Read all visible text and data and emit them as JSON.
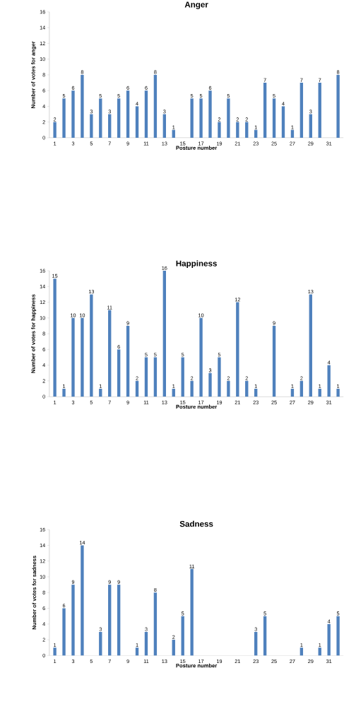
{
  "chart_data": [
    {
      "type": "bar",
      "title": "Anger",
      "xlabel": "Posture number",
      "ylabel": "Number of votes for anger",
      "color": "#4f81bd",
      "data_labels": true,
      "categories": [
        "1",
        null,
        "3",
        null,
        "5",
        null,
        "7",
        null,
        "9",
        null,
        "11",
        null,
        "13",
        null,
        "15",
        null,
        "17",
        null,
        "19",
        null,
        "21",
        null,
        "23",
        null,
        "25",
        null,
        "27",
        null,
        "29",
        null,
        "31",
        null
      ],
      "values": [
        2,
        5,
        6,
        8,
        3,
        5,
        3,
        5,
        6,
        4,
        6,
        8,
        3,
        1,
        null,
        5,
        5,
        6,
        2,
        5,
        2,
        2,
        1,
        7,
        5,
        4,
        1,
        7,
        3,
        7,
        null,
        8
      ],
      "ylim": [
        0,
        16
      ],
      "yticks": [
        0,
        2,
        4,
        6,
        8,
        10,
        12,
        14,
        16
      ]
    },
    {
      "type": "bar",
      "title": "Happiness",
      "xlabel": "Posture number",
      "ylabel": "Number of votes for happiness",
      "color": "#4f81bd",
      "data_labels": true,
      "categories": [
        "1",
        null,
        "3",
        null,
        "5",
        null,
        "7",
        null,
        "9",
        null,
        "11",
        null,
        "13",
        null,
        "15",
        null,
        "17",
        null,
        "19",
        null,
        "21",
        null,
        "23",
        null,
        "25",
        null,
        "27",
        null,
        "29",
        null,
        "31",
        null
      ],
      "values": [
        15,
        1,
        10,
        10,
        13,
        1,
        11,
        6,
        9,
        2,
        5,
        5,
        16,
        1,
        5,
        2,
        10,
        3,
        5,
        2,
        12,
        2,
        1,
        null,
        9,
        null,
        1,
        2,
        13,
        1,
        4,
        1
      ],
      "ylim": [
        0,
        16
      ],
      "yticks": [
        0,
        2,
        4,
        6,
        8,
        10,
        12,
        14,
        16
      ]
    },
    {
      "type": "bar",
      "title": "Sadness",
      "xlabel": "Posture number",
      "ylabel": "Number of votes for sadness",
      "color": "#4f81bd",
      "data_labels": true,
      "categories": [
        "1",
        null,
        "3",
        null,
        "5",
        null,
        "7",
        null,
        "9",
        null,
        "11",
        null,
        "13",
        null,
        "15",
        null,
        "17",
        null,
        "19",
        null,
        "21",
        null,
        "23",
        null,
        "25",
        null,
        "27",
        null,
        "29",
        null,
        "31",
        null
      ],
      "values": [
        1,
        6,
        9,
        14,
        null,
        3,
        9,
        9,
        null,
        1,
        3,
        8,
        null,
        2,
        5,
        11,
        null,
        null,
        null,
        null,
        null,
        null,
        3,
        5,
        null,
        null,
        null,
        1,
        null,
        1,
        4,
        5
      ],
      "ylim": [
        0,
        16
      ],
      "yticks": [
        0,
        2,
        4,
        6,
        8,
        10,
        12,
        14,
        16
      ]
    }
  ]
}
